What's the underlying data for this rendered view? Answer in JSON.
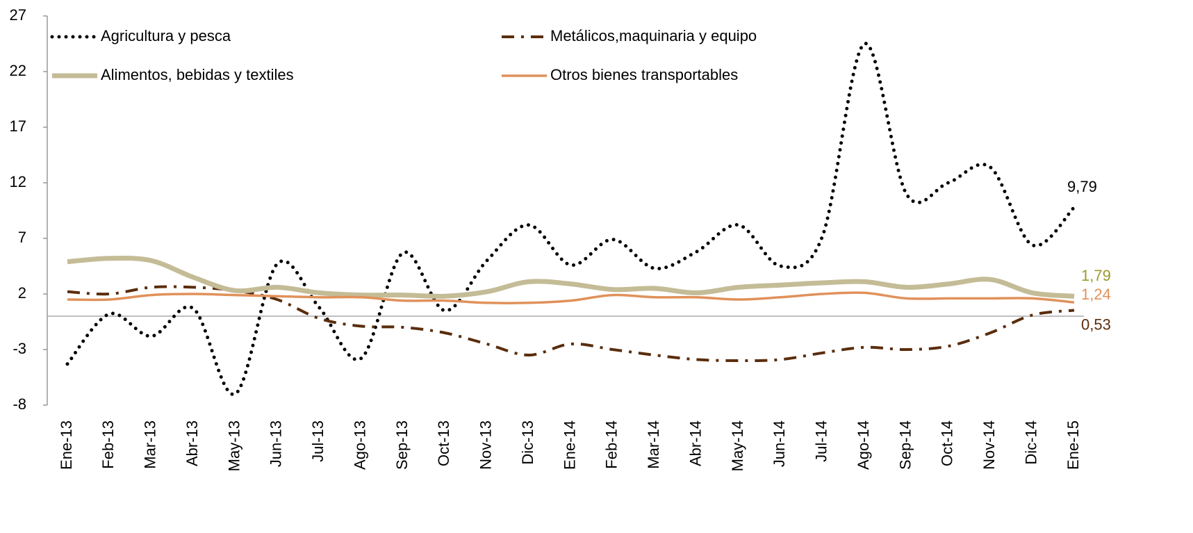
{
  "chart_data": {
    "type": "line",
    "categories": [
      "Ene-13",
      "Feb-13",
      "Mar-13",
      "Abr-13",
      "May-13",
      "Jun-13",
      "Jul-13",
      "Ago-13",
      "Sep-13",
      "Oct-13",
      "Nov-13",
      "Dic-13",
      "Ene-14",
      "Feb-14",
      "Mar-14",
      "Abr-14",
      "May-14",
      "Jun-14",
      "Jul-14",
      "Ago-14",
      "Sep-14",
      "Oct-14",
      "Nov-14",
      "Dic-14",
      "Ene-15"
    ],
    "ylim": [
      -8,
      27
    ],
    "yticks": [
      -8,
      -3,
      2,
      7,
      12,
      17,
      22,
      27
    ],
    "legend": "top",
    "smooth": true,
    "series": [
      {
        "name": "Agricultura y pesca",
        "color": "#000000",
        "style": "dotted",
        "label_color": "#000000",
        "values": [
          -4.3,
          0.2,
          -1.8,
          0.7,
          -7,
          4.7,
          0.8,
          -3.8,
          5.7,
          0.5,
          5,
          8.2,
          4.6,
          6.9,
          4.3,
          5.8,
          8.2,
          4.5,
          7.2,
          24.5,
          11,
          12,
          13.4,
          6.4,
          9.79
        ],
        "value_labels": [
          null,
          null,
          null,
          null,
          null,
          null,
          null,
          null,
          null,
          null,
          null,
          null,
          null,
          null,
          null,
          null,
          null,
          null,
          null,
          null,
          null,
          null,
          null,
          null,
          "9,79"
        ]
      },
      {
        "name": "Metálicos,maquinaria y equipo",
        "color": "#5a2d0c",
        "style": "dashdot",
        "label_color": "#5a2d0c",
        "values": [
          2.2,
          2.0,
          2.6,
          2.6,
          2.3,
          1.5,
          -0.2,
          -0.9,
          -1.0,
          -1.5,
          -2.5,
          -3.5,
          -2.5,
          -3.0,
          -3.5,
          -3.9,
          -4.0,
          -3.9,
          -3.3,
          -2.8,
          -3.0,
          -2.7,
          -1.5,
          0.1,
          0.53
        ],
        "value_labels": [
          null,
          null,
          null,
          null,
          null,
          null,
          null,
          null,
          null,
          null,
          null,
          null,
          null,
          null,
          null,
          null,
          null,
          null,
          null,
          null,
          null,
          null,
          null,
          null,
          "0,53"
        ]
      },
      {
        "name": "Alimentos, bebidas y textiles",
        "color": "#c4bc96",
        "style": "thick",
        "label_color": "#9a9a2a",
        "values": [
          4.9,
          5.2,
          5.0,
          3.5,
          2.3,
          2.6,
          2.1,
          1.9,
          1.9,
          1.8,
          2.2,
          3.1,
          2.9,
          2.4,
          2.5,
          2.1,
          2.6,
          2.8,
          3.0,
          3.1,
          2.6,
          2.9,
          3.3,
          2.1,
          1.79
        ],
        "value_labels": [
          null,
          null,
          null,
          null,
          null,
          null,
          null,
          null,
          null,
          null,
          null,
          null,
          null,
          null,
          null,
          null,
          null,
          null,
          null,
          null,
          null,
          null,
          null,
          null,
          "1,79"
        ]
      },
      {
        "name": "Otros bienes transportables",
        "color": "#e0915a",
        "style": "solid",
        "label_color": "#e0915a",
        "values": [
          1.5,
          1.5,
          1.9,
          2.0,
          1.9,
          1.8,
          1.7,
          1.7,
          1.4,
          1.4,
          1.2,
          1.2,
          1.4,
          1.9,
          1.7,
          1.7,
          1.5,
          1.7,
          2.0,
          2.1,
          1.6,
          1.6,
          1.6,
          1.6,
          1.24
        ],
        "value_labels": [
          null,
          null,
          null,
          null,
          null,
          null,
          null,
          null,
          null,
          null,
          null,
          null,
          null,
          null,
          null,
          null,
          null,
          null,
          null,
          null,
          null,
          null,
          null,
          null,
          "1,24"
        ]
      }
    ]
  }
}
